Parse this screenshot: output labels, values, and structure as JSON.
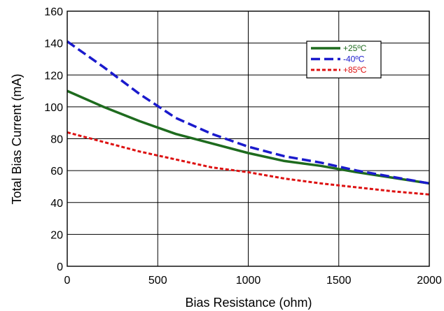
{
  "chart_data": {
    "type": "line",
    "title": "",
    "xlabel": "Bias Resistance (ohm)",
    "ylabel": "Total Bias Current (mA)",
    "xlim": [
      0,
      2000
    ],
    "ylim": [
      0,
      160
    ],
    "xticks": [
      0,
      500,
      1000,
      1500,
      2000
    ],
    "yticks": [
      0,
      20,
      40,
      60,
      80,
      100,
      120,
      140,
      160
    ],
    "grid": true,
    "legend_position": "top-right",
    "series": [
      {
        "name": "+25ºC",
        "color": "#1e6b1e",
        "style": "solid",
        "x": [
          0,
          200,
          400,
          600,
          800,
          1000,
          1200,
          1400,
          1600,
          1800,
          2000
        ],
        "y": [
          110,
          100,
          91,
          83,
          77,
          71,
          66,
          63,
          59,
          55.5,
          52
        ]
      },
      {
        "name": "-40ºC",
        "color": "#1a1acc",
        "style": "dashed",
        "x": [
          0,
          200,
          400,
          600,
          800,
          1000,
          1200,
          1400,
          1600,
          1800,
          2000
        ],
        "y": [
          141,
          125,
          108,
          93,
          83,
          75,
          69,
          65,
          60,
          56,
          52
        ]
      },
      {
        "name": "+85ºC",
        "color": "#dd1111",
        "style": "dotted",
        "x": [
          0,
          200,
          400,
          600,
          800,
          1000,
          1200,
          1400,
          1600,
          1800,
          2000
        ],
        "y": [
          84,
          78,
          72,
          67,
          62,
          59,
          55,
          52,
          49.5,
          47,
          45
        ]
      }
    ]
  }
}
